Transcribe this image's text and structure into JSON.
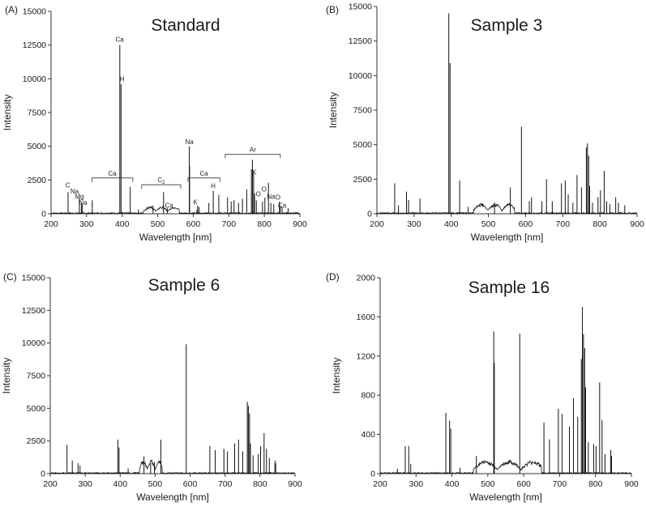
{
  "chart_data": [
    {
      "id": "A",
      "panel_label": "(A)",
      "type": "line",
      "title": "Standard",
      "xlabel": "Wavelength [nm]",
      "ylabel": "Intensity",
      "xlim": [
        200,
        900
      ],
      "ylim": [
        0,
        15000
      ],
      "xticks": [
        200,
        300,
        400,
        500,
        600,
        700,
        800,
        900
      ],
      "yticks": [
        0,
        2500,
        5000,
        7500,
        10000,
        12500,
        15000
      ],
      "band": {
        "from": 460,
        "to": 560,
        "level": 500
      },
      "lines": [
        [
          247.9,
          1600
        ],
        [
          279.6,
          1200
        ],
        [
          285.2,
          800
        ],
        [
          288.2,
          650
        ],
        [
          315.9,
          1000
        ],
        [
          393.4,
          12500
        ],
        [
          396.8,
          9600
        ],
        [
          422.7,
          2000
        ],
        [
          445.5,
          300
        ],
        [
          487,
          600
        ],
        [
          516.5,
          1600
        ],
        [
          527,
          400
        ],
        [
          588.9,
          5000
        ],
        [
          589.6,
          3500
        ],
        [
          610.3,
          300
        ],
        [
          612.2,
          600
        ],
        [
          616.2,
          500
        ],
        [
          643.9,
          800
        ],
        [
          656.3,
          1700
        ],
        [
          671.8,
          1400
        ],
        [
          696.5,
          1200
        ],
        [
          706.7,
          900
        ],
        [
          714.7,
          1000
        ],
        [
          727.3,
          800
        ],
        [
          738.4,
          1100
        ],
        [
          750.4,
          1800
        ],
        [
          763.5,
          3300
        ],
        [
          766.5,
          4000
        ],
        [
          769.9,
          3000
        ],
        [
          772.4,
          1500
        ],
        [
          777.4,
          1000
        ],
        [
          794.8,
          900
        ],
        [
          801.5,
          1200
        ],
        [
          811.5,
          2300
        ],
        [
          818.3,
          800
        ],
        [
          826.5,
          700
        ],
        [
          842.5,
          900
        ],
        [
          844.6,
          600
        ],
        [
          849.8,
          500
        ],
        [
          866.8,
          400
        ]
      ],
      "brackets": [
        {
          "label": "Ca",
          "from": 315,
          "to": 430,
          "y": 2650
        },
        {
          "label": "C2",
          "from": 455,
          "to": 565,
          "y": 2150
        },
        {
          "label": "Ca",
          "from": 585,
          "to": 675,
          "y": 2650
        },
        {
          "label": "Ar",
          "from": 690,
          "to": 845,
          "y": 4400
        }
      ],
      "annotations": [
        {
          "text": "C",
          "x": 247,
          "y": 1950
        },
        {
          "text": "Na",
          "x": 266,
          "y": 1500
        },
        {
          "text": "Mg",
          "x": 280,
          "y": 1100
        },
        {
          "text": "Na",
          "x": 290,
          "y": 650
        },
        {
          "text": "Ca",
          "x": 393,
          "y": 12750
        },
        {
          "text": "H",
          "x": 400,
          "y": 9800
        },
        {
          "text": "Ca",
          "x": 532,
          "y": 450
        },
        {
          "text": "Na",
          "x": 589,
          "y": 5150
        },
        {
          "text": "K",
          "x": 606,
          "y": 700
        },
        {
          "text": "H",
          "x": 656,
          "y": 1900
        },
        {
          "text": "K",
          "x": 772,
          "y": 2900
        },
        {
          "text": "O",
          "x": 783,
          "y": 1300
        },
        {
          "text": "O",
          "x": 799,
          "y": 1650
        },
        {
          "text": "Na",
          "x": 819,
          "y": 1100
        },
        {
          "text": "O",
          "x": 838,
          "y": 1050
        },
        {
          "text": "Ca",
          "x": 850,
          "y": 450
        }
      ]
    },
    {
      "id": "B",
      "panel_label": "(B)",
      "type": "line",
      "title": "Sample 3",
      "xlabel": "Wavelength [nm]",
      "ylabel": "Intensity",
      "xlim": [
        200,
        900
      ],
      "ylim": [
        0,
        15000
      ],
      "xticks": [
        200,
        300,
        400,
        500,
        600,
        700,
        800,
        900
      ],
      "yticks": [
        0,
        2500,
        5000,
        7500,
        10000,
        12500,
        15000
      ],
      "band": {
        "from": 460,
        "to": 570,
        "level": 700
      },
      "lines": [
        [
          247.9,
          2200
        ],
        [
          258,
          600
        ],
        [
          279.6,
          1600
        ],
        [
          285.2,
          1000
        ],
        [
          315.9,
          1100
        ],
        [
          393.4,
          14500
        ],
        [
          396.8,
          10900
        ],
        [
          422.7,
          2400
        ],
        [
          445.5,
          500
        ],
        [
          516.5,
          800
        ],
        [
          559,
          1900
        ],
        [
          588.9,
          6300
        ],
        [
          610,
          900
        ],
        [
          616,
          1200
        ],
        [
          643.9,
          900
        ],
        [
          656.3,
          2500
        ],
        [
          671.8,
          900
        ],
        [
          696.5,
          2200
        ],
        [
          706.7,
          2400
        ],
        [
          714.7,
          1400
        ],
        [
          727.3,
          800
        ],
        [
          738.4,
          2800
        ],
        [
          750.4,
          1900
        ],
        [
          763.5,
          4800
        ],
        [
          766.5,
          5100
        ],
        [
          769.9,
          4200
        ],
        [
          772.4,
          2000
        ],
        [
          780,
          800
        ],
        [
          794.8,
          1200
        ],
        [
          801.5,
          1700
        ],
        [
          811.5,
          3100
        ],
        [
          818.3,
          900
        ],
        [
          826.5,
          700
        ],
        [
          842.5,
          1200
        ],
        [
          849.8,
          800
        ],
        [
          866.8,
          600
        ]
      ],
      "brackets": [],
      "annotations": []
    },
    {
      "id": "C",
      "panel_label": "(C)",
      "type": "line",
      "title": "Sample 6",
      "xlabel": "Wavelength [nm]",
      "ylabel": "Intensity",
      "xlim": [
        200,
        900
      ],
      "ylim": [
        0,
        15000
      ],
      "xticks": [
        200,
        300,
        400,
        500,
        600,
        700,
        800,
        900
      ],
      "yticks": [
        0,
        2500,
        5000,
        7500,
        10000,
        12500,
        15000
      ],
      "band": {
        "from": 455,
        "to": 520,
        "level": 1000
      },
      "lines": [
        [
          247.9,
          2200
        ],
        [
          263,
          1000
        ],
        [
          279.6,
          800
        ],
        [
          285.2,
          600
        ],
        [
          393.4,
          2600
        ],
        [
          396.8,
          2000
        ],
        [
          422.7,
          400
        ],
        [
          468,
          1300
        ],
        [
          487,
          800
        ],
        [
          498,
          900
        ],
        [
          516.5,
          2600
        ],
        [
          588.9,
          9900
        ],
        [
          656.3,
          2100
        ],
        [
          671.8,
          1800
        ],
        [
          696.5,
          1900
        ],
        [
          706.7,
          1700
        ],
        [
          727.3,
          2300
        ],
        [
          738.4,
          2600
        ],
        [
          750.4,
          1700
        ],
        [
          763.5,
          5500
        ],
        [
          766.5,
          5200
        ],
        [
          769.9,
          4600
        ],
        [
          772.4,
          2300
        ],
        [
          780,
          1400
        ],
        [
          794.8,
          1500
        ],
        [
          801.5,
          2100
        ],
        [
          811.5,
          3100
        ],
        [
          818.3,
          1900
        ],
        [
          826.5,
          1200
        ],
        [
          842.5,
          1000
        ],
        [
          844.6,
          800
        ]
      ],
      "brackets": [],
      "annotations": []
    },
    {
      "id": "D",
      "panel_label": "(D)",
      "type": "line",
      "title": "Sample 16",
      "xlabel": "Wavelength [nm]",
      "ylabel": "Intensity",
      "xlim": [
        200,
        900
      ],
      "ylim": [
        0,
        2000
      ],
      "xticks": [
        200,
        300,
        400,
        500,
        600,
        700,
        800,
        900
      ],
      "yticks": [
        0,
        400,
        800,
        1200,
        1600,
        2000
      ],
      "band": {
        "from": 460,
        "to": 650,
        "level": 130
      },
      "lines": [
        [
          247.9,
          50
        ],
        [
          270,
          280
        ],
        [
          279.6,
          280
        ],
        [
          285.2,
          100
        ],
        [
          383,
          620
        ],
        [
          393.4,
          540
        ],
        [
          396.8,
          460
        ],
        [
          422.7,
          60
        ],
        [
          468,
          180
        ],
        [
          516.5,
          1450
        ],
        [
          518,
          1130
        ],
        [
          588.9,
          1430
        ],
        [
          656.3,
          520
        ],
        [
          671.8,
          350
        ],
        [
          696.5,
          660
        ],
        [
          706.7,
          610
        ],
        [
          727.3,
          480
        ],
        [
          738.4,
          770
        ],
        [
          750.4,
          580
        ],
        [
          760.5,
          1170
        ],
        [
          763.5,
          1700
        ],
        [
          766.5,
          1420
        ],
        [
          769.9,
          1280
        ],
        [
          772.4,
          880
        ],
        [
          780,
          320
        ],
        [
          794.8,
          300
        ],
        [
          801.5,
          280
        ],
        [
          811.5,
          930
        ],
        [
          818.3,
          550
        ],
        [
          826.5,
          200
        ],
        [
          842.5,
          240
        ],
        [
          844.6,
          180
        ]
      ],
      "brackets": [],
      "annotations": []
    }
  ]
}
